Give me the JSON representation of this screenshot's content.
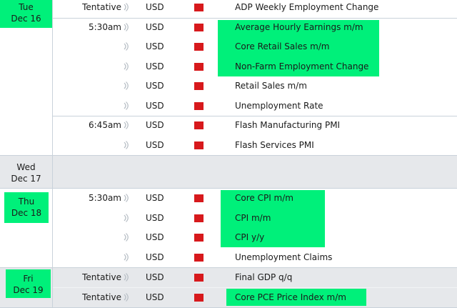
{
  "days": [
    {
      "label": [
        "Tue",
        "Dec 16"
      ],
      "highlight": true,
      "blocks": [
        {
          "rows": [
            {
              "time": "Tentative",
              "currency": "USD",
              "impact": "high",
              "event": "ADP Weekly Employment Change"
            }
          ]
        },
        {
          "rows": [
            {
              "time": "5:30am",
              "currency": "USD",
              "impact": "high",
              "event": "Average Hourly Earnings m/m"
            },
            {
              "time": "",
              "currency": "USD",
              "impact": "high",
              "event": "Core Retail Sales m/m"
            },
            {
              "time": "",
              "currency": "USD",
              "impact": "high",
              "event": "Non-Farm Employment Change"
            },
            {
              "time": "",
              "currency": "USD",
              "impact": "high",
              "event": "Retail Sales m/m"
            },
            {
              "time": "",
              "currency": "USD",
              "impact": "high",
              "event": "Unemployment Rate"
            }
          ]
        },
        {
          "rows": [
            {
              "time": "6:45am",
              "currency": "USD",
              "impact": "high",
              "event": "Flash Manufacturing PMI"
            },
            {
              "time": "",
              "currency": "USD",
              "impact": "high",
              "event": "Flash Services PMI"
            }
          ]
        }
      ]
    },
    {
      "label": [
        "Wed",
        "Dec 17"
      ],
      "highlight": false,
      "blocks": []
    },
    {
      "label": [
        "Thu",
        "Dec 18"
      ],
      "highlight": true,
      "blocks": [
        {
          "rows": [
            {
              "time": "5:30am",
              "currency": "USD",
              "impact": "high",
              "event": "Core CPI m/m"
            },
            {
              "time": "",
              "currency": "USD",
              "impact": "high",
              "event": "CPI m/m"
            },
            {
              "time": "",
              "currency": "USD",
              "impact": "high",
              "event": "CPI y/y"
            },
            {
              "time": "",
              "currency": "USD",
              "impact": "high",
              "event": "Unemployment Claims"
            }
          ]
        }
      ]
    },
    {
      "label": [
        "Fri",
        "Dec 19"
      ],
      "highlight": true,
      "blocks": [
        {
          "rows": [
            {
              "time": "Tentative",
              "currency": "USD",
              "impact": "high",
              "event": "Final GDP q/q"
            },
            {
              "time": "Tentative",
              "currency": "USD",
              "impact": "high",
              "event": "Core PCE Price Index m/m"
            }
          ]
        }
      ]
    }
  ],
  "colors": {
    "highlight": "#00f07a",
    "impact_high": "#d7191c",
    "grey_row": "#e6e8eb",
    "border": "#c9d2da"
  },
  "icons": {
    "sound": "sound-icon",
    "impact": "impact-high-icon"
  }
}
